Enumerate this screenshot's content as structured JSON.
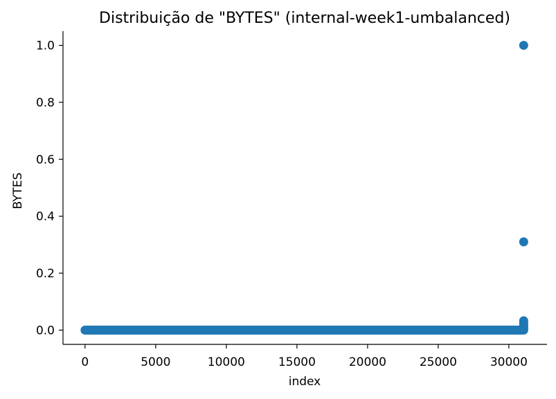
{
  "chart_data": {
    "type": "scatter",
    "title": "Distribuição de \"BYTES\" (internal-week1-umbalanced)",
    "xlabel": "index",
    "ylabel": "BYTES",
    "xlim": [
      -1560,
      32700
    ],
    "ylim": [
      -0.05,
      1.05
    ],
    "xticks": [
      0,
      5000,
      10000,
      15000,
      20000,
      25000,
      30000
    ],
    "xtick_labels": [
      "0",
      "5000",
      "10000",
      "15000",
      "20000",
      "25000",
      "30000"
    ],
    "yticks": [
      0.0,
      0.2,
      0.4,
      0.6,
      0.8,
      1.0
    ],
    "ytick_labels": [
      "0.0",
      "0.2",
      "0.4",
      "0.6",
      "0.8",
      "1.0"
    ],
    "grid": false,
    "color": "#1f77b4",
    "band": {
      "x_start": 0,
      "x_end": 31050,
      "y": 0.0
    },
    "points": [
      {
        "x": 31050,
        "y": 1.0
      },
      {
        "x": 31050,
        "y": 0.31
      },
      {
        "x": 31050,
        "y": 0.033
      },
      {
        "x": 31050,
        "y": 0.025
      },
      {
        "x": 31050,
        "y": 0.018
      },
      {
        "x": 31050,
        "y": 0.012
      },
      {
        "x": 31050,
        "y": 0.007
      },
      {
        "x": 31050,
        "y": 0.004
      }
    ]
  }
}
